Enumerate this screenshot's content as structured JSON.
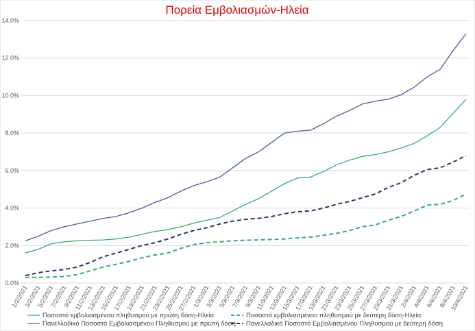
{
  "chart_data": {
    "type": "line",
    "title": "Πορεία Εμβολιασμών-Ηλεία",
    "categories": [
      "1/2/2021",
      "3/2/2021",
      "5/2/2021",
      "7/2/2021",
      "9/2/2021",
      "11/2/2021",
      "13/2/2021",
      "15/2/2021",
      "17/2/2021",
      "19/2/2021",
      "21/2/2021",
      "23/2/2021",
      "25/2/2021",
      "27/2/2021",
      "1/3/2021",
      "3/3/2021",
      "5/3/2021",
      "7/3/2021",
      "9/3/2021",
      "11/3/2021",
      "13/3/2021",
      "15/3/2021",
      "17/3/2021",
      "19/3/2021",
      "21/3/2021",
      "23/3/2021",
      "25/3/2021",
      "27/3/2021",
      "29/3/2021",
      "31/3/2021",
      "2/4/2021",
      "4/4/2021",
      "6/4/2021",
      "8/4/2021",
      "10/4/2021"
    ],
    "series": [
      {
        "name": "Ποσοστό εμβολιασμένου πληθυσμού με πρώτη δόση-Ηλεία",
        "color": "#2bb35e",
        "style": "solid",
        "values": [
          1.6,
          1.8,
          2.1,
          2.2,
          2.25,
          2.28,
          2.3,
          2.35,
          2.45,
          2.6,
          2.75,
          2.85,
          3.0,
          3.2,
          3.35,
          3.5,
          3.85,
          4.2,
          4.5,
          4.9,
          5.3,
          5.6,
          5.65,
          5.95,
          6.3,
          6.55,
          6.75,
          6.85,
          7.0,
          7.2,
          7.45,
          7.85,
          8.3,
          9.05,
          9.8
        ]
      },
      {
        "name": "Ποσοστό εμβολιασμένου πληθυσμού με δεύτερη δόση-Ηλεία",
        "color": "#2bb35e",
        "style": "dashed",
        "values": [
          0.3,
          0.3,
          0.32,
          0.35,
          0.45,
          0.65,
          0.85,
          1.0,
          1.15,
          1.35,
          1.5,
          1.6,
          1.85,
          2.05,
          2.15,
          2.2,
          2.25,
          2.28,
          2.3,
          2.32,
          2.35,
          2.4,
          2.45,
          2.55,
          2.65,
          2.8,
          3.0,
          3.1,
          3.35,
          3.55,
          3.85,
          4.15,
          4.2,
          4.4,
          4.75
        ]
      },
      {
        "name": "Πανελλαδικό Ποσοστό Εμβολιασμένου Πληθυσμού με πρώτη δόση",
        "color": "#44609c",
        "style": "solid",
        "values": [
          2.25,
          2.5,
          2.8,
          3.0,
          3.15,
          3.3,
          3.45,
          3.55,
          3.75,
          4.0,
          4.3,
          4.55,
          4.9,
          5.2,
          5.4,
          5.65,
          6.15,
          6.65,
          7.0,
          7.5,
          8.0,
          8.1,
          8.15,
          8.5,
          8.9,
          9.2,
          9.55,
          9.7,
          9.8,
          10.05,
          10.45,
          11.0,
          11.4,
          12.4,
          13.3
        ]
      },
      {
        "name": "Πανελλαδικό Ποσοστό Εμβολιασμένου Πληθυσμού με δεύτερη δόση",
        "color": "#203864",
        "style": "dashed",
        "values": [
          0.4,
          0.55,
          0.65,
          0.72,
          0.85,
          1.1,
          1.4,
          1.6,
          1.8,
          2.0,
          2.15,
          2.35,
          2.6,
          2.8,
          2.95,
          3.15,
          3.3,
          3.4,
          3.45,
          3.55,
          3.7,
          3.8,
          3.85,
          4.0,
          4.2,
          4.35,
          4.55,
          4.75,
          5.1,
          5.35,
          5.75,
          6.05,
          6.15,
          6.45,
          6.8
        ]
      }
    ],
    "ylim": [
      0,
      14
    ],
    "yticks": [
      {
        "value": 0,
        "label": "0.0%"
      },
      {
        "value": 2,
        "label": "2.0%"
      },
      {
        "value": 4,
        "label": "4.0%"
      },
      {
        "value": 6,
        "label": "6.0%"
      },
      {
        "value": 8,
        "label": "8.0%"
      },
      {
        "value": 10,
        "label": "10.0%"
      },
      {
        "value": 12,
        "label": "12.0%"
      },
      {
        "value": 14,
        "label": "14.0%"
      }
    ],
    "grid": true,
    "legend": "bottom"
  }
}
